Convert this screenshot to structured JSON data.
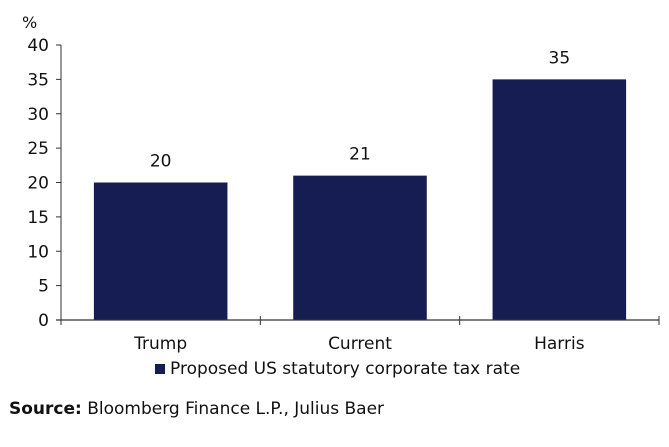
{
  "chart_data": {
    "type": "bar",
    "title": "",
    "ylabel": "%",
    "xlabel": "",
    "categories": [
      "Trump",
      "Current",
      "Harris"
    ],
    "series": [
      {
        "name": "Proposed US statutory corporate tax rate",
        "values": [
          20,
          21,
          35
        ],
        "color": "#161d52"
      }
    ],
    "data_labels": [
      "20",
      "21",
      "35"
    ],
    "ylim": [
      0,
      40
    ],
    "yticks": [
      0,
      5,
      10,
      15,
      20,
      25,
      30,
      35,
      40
    ],
    "grid": false,
    "legend_position": "bottom"
  },
  "legend": {
    "label": "Proposed US statutory corporate tax rate"
  },
  "source": {
    "prefix": "Source:",
    "text": " Bloomberg Finance L.P., Julius Baer"
  }
}
